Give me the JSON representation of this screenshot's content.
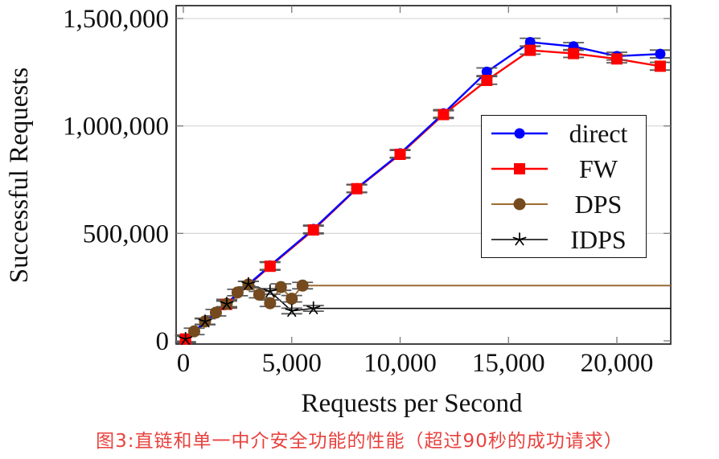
{
  "caption": {
    "text": "图3:直链和单一中介安全功能的性能（超过90秒的成功请求）",
    "color": "#e8423e"
  },
  "chart_data": {
    "type": "line",
    "title": "",
    "xlabel": "Requests per Second",
    "ylabel": "Successful Requests",
    "xlim": [
      -334,
      22485
    ],
    "ylim": [
      -15000,
      1560000
    ],
    "grid": "horizontal-major",
    "grid_color": "#d6d6d6",
    "axis_color": "#222222",
    "tick_color": "#7a7a7a",
    "errorbar_color": "#5a5a5a",
    "legend_position": "inside-right-middle",
    "xticks": {
      "values": [
        0,
        5000,
        10000,
        15000,
        20000
      ],
      "labels": [
        "0",
        "5,000",
        "10,000",
        "15,000",
        "20,000"
      ]
    },
    "yticks": {
      "values": [
        0,
        500000,
        1000000,
        1500000
      ],
      "labels": [
        "0",
        "500,000",
        "1,000,000",
        "1,500,000"
      ]
    },
    "series": [
      {
        "name": "direct",
        "color": "#0000ff",
        "marker": "circle",
        "marker_fill": "#0000ff",
        "marker_size": 13,
        "line_width": 2.4,
        "yerr": 18000,
        "extend_to_xmax": false,
        "points": [
          [
            100,
            9000
          ],
          [
            2000,
            175000
          ],
          [
            4000,
            350000
          ],
          [
            6000,
            520000
          ],
          [
            8000,
            710000
          ],
          [
            10000,
            872000
          ],
          [
            12000,
            1058000
          ],
          [
            14000,
            1252000
          ],
          [
            16000,
            1390000
          ],
          [
            18000,
            1370000
          ],
          [
            20000,
            1325000
          ],
          [
            22000,
            1335000
          ]
        ]
      },
      {
        "name": "FW",
        "color": "#ff0000",
        "marker": "square",
        "marker_fill": "#ff0000",
        "marker_size": 14,
        "line_width": 2.4,
        "yerr": 18000,
        "extend_to_xmax": false,
        "points": [
          [
            100,
            8500
          ],
          [
            2000,
            170000
          ],
          [
            4000,
            347000
          ],
          [
            6000,
            516000
          ],
          [
            8000,
            708000
          ],
          [
            10000,
            868000
          ],
          [
            12000,
            1053000
          ],
          [
            14000,
            1212000
          ],
          [
            16000,
            1352000
          ],
          [
            18000,
            1337000
          ],
          [
            20000,
            1312000
          ],
          [
            22000,
            1278000
          ]
        ]
      },
      {
        "name": "DPS",
        "color": "#9c6b33",
        "marker": "circle",
        "marker_fill": "#744a1e",
        "marker_size": 15,
        "line_width": 2.0,
        "yerr": 15000,
        "extend_to_xmax": true,
        "points": [
          [
            500,
            44000
          ],
          [
            1000,
            90000
          ],
          [
            1500,
            131000
          ],
          [
            2000,
            172000
          ],
          [
            2500,
            225000
          ],
          [
            3000,
            262000
          ],
          [
            3500,
            215000
          ],
          [
            4000,
            175000
          ],
          [
            4500,
            250000
          ],
          [
            5000,
            196000
          ],
          [
            5500,
            257000
          ]
        ]
      },
      {
        "name": "IDPS",
        "color": "#000000",
        "marker": "star",
        "marker_fill": "#000000",
        "marker_size": 16,
        "line_width": 1.5,
        "yerr": 13000,
        "extend_to_xmax": true,
        "points": [
          [
            100,
            8500
          ],
          [
            1000,
            90000
          ],
          [
            2000,
            172000
          ],
          [
            3000,
            264000
          ],
          [
            4000,
            230000
          ],
          [
            5000,
            139000
          ],
          [
            6000,
            151000
          ]
        ]
      }
    ]
  }
}
